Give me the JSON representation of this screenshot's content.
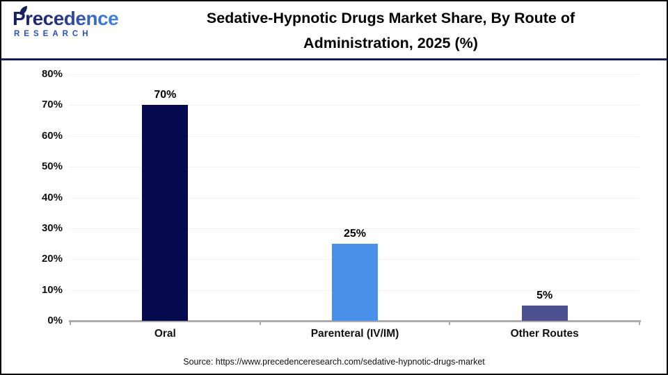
{
  "header": {
    "logo": {
      "brand": "Precedence",
      "subtitle": "RESEARCH"
    },
    "title_line1": "Sedative-Hypnotic Drugs Market Share, By Route of",
    "title_line2": "Administration, 2025 (%)"
  },
  "chart_data": {
    "type": "bar",
    "title": "Sedative-Hypnotic Drugs Market Share, By Route of Administration, 2025 (%)",
    "categories": [
      "Oral",
      "Parenteral (IV/IM)",
      "Other Routes"
    ],
    "values": [
      70,
      25,
      5
    ],
    "value_labels": [
      "70%",
      "25%",
      "5%"
    ],
    "bar_colors": [
      "#050a4e",
      "#4a90e8",
      "#4c508e"
    ],
    "xlabel": "",
    "ylabel": "",
    "ylim": [
      0,
      80
    ],
    "ytick_labels": [
      "0%",
      "10%",
      "20%",
      "30%",
      "40%",
      "50%",
      "60%",
      "70%",
      "80%"
    ],
    "grid": true,
    "legend_position": "none",
    "gridline_color": "#f1f1f1",
    "axis_color": "#ababab"
  },
  "footer": {
    "source": "Source: https://www.precedenceresearch.com/sedative-hypnotic-drugs-market"
  }
}
